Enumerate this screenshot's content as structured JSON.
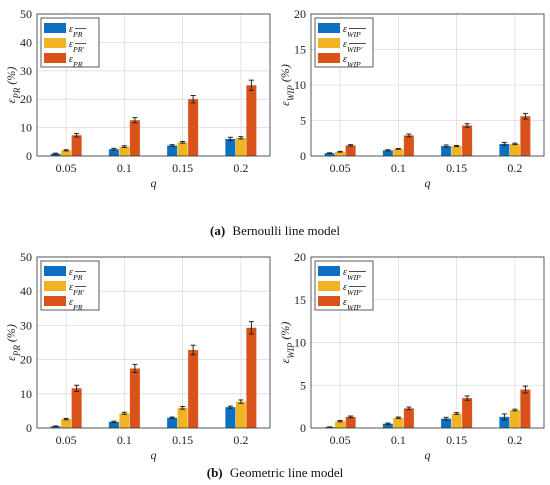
{
  "figures": [
    {
      "caption_letter": "(a)",
      "caption_text": "Bernoulli line model"
    },
    {
      "caption_letter": "(b)",
      "caption_text": "Geometric line model"
    }
  ],
  "colors": {
    "series1": "#0d6fc0",
    "series2": "#f0b323",
    "series3": "#d95219"
  },
  "chart_data": [
    {
      "type": "bar",
      "categories": [
        "0.05",
        "0.1",
        "0.15",
        "0.2"
      ],
      "xlabel": "q",
      "ylabel": "ε_PR (%)",
      "ylim": [
        0,
        50
      ],
      "yticks": [
        0,
        10,
        20,
        30,
        40,
        50
      ],
      "grid": true,
      "legend": "top-left",
      "series": [
        {
          "name": "ε_PR̄",
          "values": [
            0.8,
            2.4,
            3.7,
            6.0
          ],
          "errors": [
            0.2,
            0.3,
            0.3,
            0.6
          ]
        },
        {
          "name": "ε_PR̄'",
          "values": [
            2.0,
            3.3,
            4.8,
            6.4
          ],
          "errors": [
            0.2,
            0.3,
            0.3,
            0.4
          ]
        },
        {
          "name": "ε_PR",
          "values": [
            7.3,
            12.6,
            20.0,
            24.9
          ],
          "errors": [
            0.6,
            0.9,
            1.3,
            1.8
          ]
        }
      ]
    },
    {
      "type": "bar",
      "categories": [
        "0.05",
        "0.1",
        "0.15",
        "0.2"
      ],
      "xlabel": "q",
      "ylabel": "ε_WIP (%)",
      "ylim": [
        0,
        20
      ],
      "yticks": [
        0,
        5,
        10,
        15,
        20
      ],
      "grid": true,
      "legend": "top-left",
      "series": [
        {
          "name": "ε_WIP̄",
          "values": [
            0.4,
            0.8,
            1.4,
            1.7
          ],
          "errors": [
            0.05,
            0.08,
            0.15,
            0.2
          ]
        },
        {
          "name": "ε_WIP̄'",
          "values": [
            0.6,
            1.0,
            1.4,
            1.7
          ],
          "errors": [
            0.05,
            0.05,
            0.08,
            0.1
          ]
        },
        {
          "name": "ε_WIP",
          "values": [
            1.5,
            2.9,
            4.3,
            5.6
          ],
          "errors": [
            0.1,
            0.2,
            0.25,
            0.4
          ]
        }
      ]
    },
    {
      "type": "bar",
      "categories": [
        "0.05",
        "0.1",
        "0.15",
        "0.2"
      ],
      "xlabel": "q",
      "ylabel": "ε_PR (%)",
      "ylim": [
        0,
        50
      ],
      "yticks": [
        0,
        10,
        20,
        30,
        40,
        50
      ],
      "grid": true,
      "legend": "top-left",
      "series": [
        {
          "name": "ε_PR̄",
          "values": [
            0.5,
            1.8,
            3.0,
            6.1
          ],
          "errors": [
            0.1,
            0.2,
            0.2,
            0.3
          ]
        },
        {
          "name": "ε_PR̄'",
          "values": [
            2.6,
            4.3,
            5.9,
            7.7
          ],
          "errors": [
            0.2,
            0.3,
            0.4,
            0.5
          ]
        },
        {
          "name": "ε_PR",
          "values": [
            11.6,
            17.4,
            22.8,
            29.3
          ],
          "errors": [
            0.9,
            1.2,
            1.4,
            1.8
          ]
        }
      ]
    },
    {
      "type": "bar",
      "categories": [
        "0.05",
        "0.1",
        "0.15",
        "0.2"
      ],
      "xlabel": "q",
      "ylabel": "ε_WIP (%)",
      "ylim": [
        0,
        20
      ],
      "yticks": [
        0,
        5,
        10,
        15,
        20
      ],
      "grid": true,
      "legend": "top-left",
      "series": [
        {
          "name": "ε_WIP̄",
          "values": [
            0.1,
            0.5,
            1.1,
            1.3
          ],
          "errors": [
            0.03,
            0.08,
            0.15,
            0.35
          ]
        },
        {
          "name": "ε_WIP̄'",
          "values": [
            0.8,
            1.2,
            1.7,
            2.1
          ],
          "errors": [
            0.08,
            0.08,
            0.1,
            0.1
          ]
        },
        {
          "name": "ε_WIP",
          "values": [
            1.3,
            2.3,
            3.5,
            4.5
          ],
          "errors": [
            0.1,
            0.15,
            0.25,
            0.4
          ]
        }
      ]
    }
  ]
}
